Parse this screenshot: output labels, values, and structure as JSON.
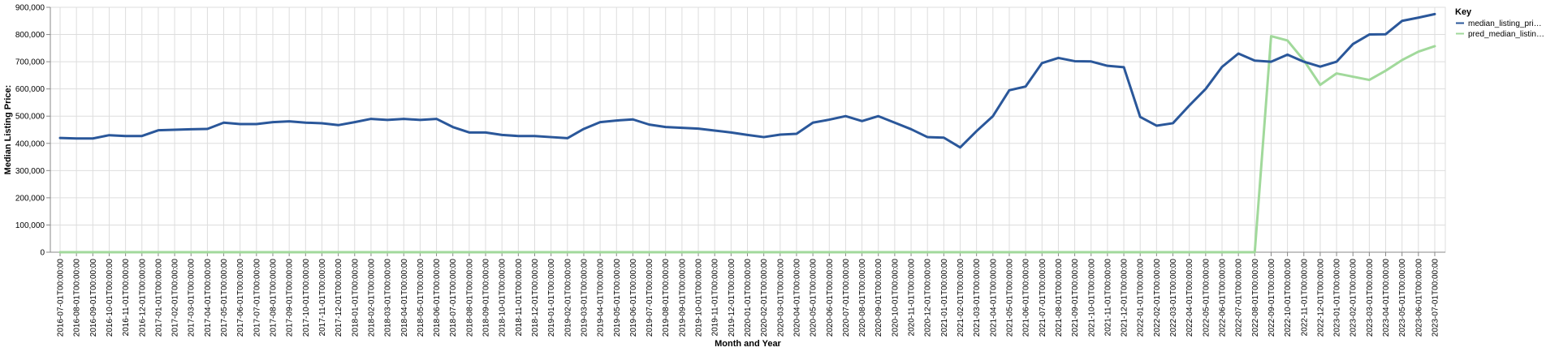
{
  "chart_data": {
    "type": "line",
    "xlabel": "Month and Year",
    "ylabel": "Median Listing Price:",
    "ylim": [
      0,
      900000
    ],
    "yticks": [
      0,
      100000,
      200000,
      300000,
      400000,
      500000,
      600000,
      700000,
      800000,
      900000
    ],
    "ytick_labels": [
      "0",
      "100,000",
      "200,000",
      "300,000",
      "400,000",
      "500,000",
      "600,000",
      "700,000",
      "800,000",
      "900,000"
    ],
    "grid": true,
    "legend": {
      "title": "Key",
      "placement": "top-right"
    },
    "categories": [
      "2016-07-01T00:00:00",
      "2016-08-01T00:00:00",
      "2016-09-01T00:00:00",
      "2016-10-01T00:00:00",
      "2016-11-01T00:00:00",
      "2016-12-01T00:00:00",
      "2017-01-01T00:00:00",
      "2017-02-01T00:00:00",
      "2017-03-01T00:00:00",
      "2017-04-01T00:00:00",
      "2017-05-01T00:00:00",
      "2017-06-01T00:00:00",
      "2017-07-01T00:00:00",
      "2017-08-01T00:00:00",
      "2017-09-01T00:00:00",
      "2017-10-01T00:00:00",
      "2017-11-01T00:00:00",
      "2017-12-01T00:00:00",
      "2018-01-01T00:00:00",
      "2018-02-01T00:00:00",
      "2018-03-01T00:00:00",
      "2018-04-01T00:00:00",
      "2018-05-01T00:00:00",
      "2018-06-01T00:00:00",
      "2018-07-01T00:00:00",
      "2018-08-01T00:00:00",
      "2018-09-01T00:00:00",
      "2018-10-01T00:00:00",
      "2018-11-01T00:00:00",
      "2018-12-01T00:00:00",
      "2019-01-01T00:00:00",
      "2019-02-01T00:00:00",
      "2019-03-01T00:00:00",
      "2019-04-01T00:00:00",
      "2019-05-01T00:00:00",
      "2019-06-01T00:00:00",
      "2019-07-01T00:00:00",
      "2019-08-01T00:00:00",
      "2019-09-01T00:00:00",
      "2019-10-01T00:00:00",
      "2019-11-01T00:00:00",
      "2019-12-01T00:00:00",
      "2020-01-01T00:00:00",
      "2020-02-01T00:00:00",
      "2020-03-01T00:00:00",
      "2020-04-01T00:00:00",
      "2020-05-01T00:00:00",
      "2020-06-01T00:00:00",
      "2020-07-01T00:00:00",
      "2020-08-01T00:00:00",
      "2020-09-01T00:00:00",
      "2020-10-01T00:00:00",
      "2020-11-01T00:00:00",
      "2020-12-01T00:00:00",
      "2021-01-01T00:00:00",
      "2021-02-01T00:00:00",
      "2021-03-01T00:00:00",
      "2021-04-01T00:00:00",
      "2021-05-01T00:00:00",
      "2021-06-01T00:00:00",
      "2021-07-01T00:00:00",
      "2021-08-01T00:00:00",
      "2021-09-01T00:00:00",
      "2021-10-01T00:00:00",
      "2021-11-01T00:00:00",
      "2021-12-01T00:00:00",
      "2022-01-01T00:00:00",
      "2022-02-01T00:00:00",
      "2022-03-01T00:00:00",
      "2022-04-01T00:00:00",
      "2022-05-01T00:00:00",
      "2022-06-01T00:00:00",
      "2022-07-01T00:00:00",
      "2022-08-01T00:00:00",
      "2022-09-01T00:00:00",
      "2022-10-01T00:00:00",
      "2022-11-01T00:00:00",
      "2022-12-01T00:00:00",
      "2023-01-01T00:00:00",
      "2023-02-01T00:00:00",
      "2023-03-01T00:00:00",
      "2023-04-01T00:00:00",
      "2023-05-01T00:00:00",
      "2023-06-01T00:00:00",
      "2023-07-01T00:00:00"
    ],
    "series": [
      {
        "name": "median_listing_pri…",
        "color": "#2a579a",
        "values": [
          420000,
          418000,
          418000,
          430000,
          427000,
          427000,
          448000,
          450000,
          452000,
          453000,
          476000,
          471000,
          471000,
          478000,
          481000,
          476000,
          474000,
          467000,
          478000,
          490000,
          486000,
          490000,
          486000,
          490000,
          460000,
          440000,
          440000,
          431000,
          427000,
          427000,
          423000,
          419000,
          453000,
          478000,
          484000,
          488000,
          469000,
          460000,
          457000,
          454000,
          447000,
          440000,
          431000,
          423000,
          432000,
          435000,
          476000,
          487000,
          500000,
          482000,
          500000,
          476000,
          452000,
          423000,
          421000,
          385000,
          445000,
          500000,
          595000,
          609000,
          695000,
          714000,
          702000,
          701000,
          685000,
          680000,
          497000,
          465000,
          474000,
          539000,
          600000,
          681000,
          730000,
          704000,
          700000,
          726000,
          700000,
          682000,
          700000,
          765000,
          800000,
          801000,
          850000,
          862000,
          875000
        ]
      },
      {
        "name": "pred_median_listin…",
        "color": "#a1d99b",
        "values": [
          0,
          0,
          0,
          0,
          0,
          0,
          0,
          0,
          0,
          0,
          0,
          0,
          0,
          0,
          0,
          0,
          0,
          0,
          0,
          0,
          0,
          0,
          0,
          0,
          0,
          0,
          0,
          0,
          0,
          0,
          0,
          0,
          0,
          0,
          0,
          0,
          0,
          0,
          0,
          0,
          0,
          0,
          0,
          0,
          0,
          0,
          0,
          0,
          0,
          0,
          0,
          0,
          0,
          0,
          0,
          0,
          0,
          0,
          0,
          0,
          0,
          0,
          0,
          0,
          0,
          0,
          0,
          0,
          0,
          0,
          0,
          0,
          0,
          0,
          794000,
          778000,
          705000,
          615000,
          657000,
          645000,
          633000,
          667000,
          706000,
          737000,
          757000
        ]
      }
    ]
  }
}
